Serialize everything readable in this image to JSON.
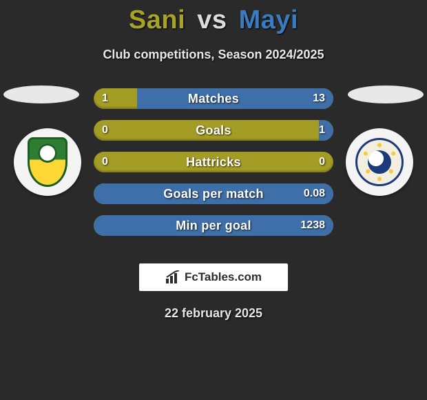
{
  "title": {
    "player1": "Sani",
    "vs": "vs",
    "player2": "Mayi"
  },
  "subtitle": "Club competitions, Season 2024/2025",
  "colors": {
    "player1_bar": "#a49d25",
    "player2_bar": "#3f6fa8",
    "player1_title": "#a8a229",
    "player2_title": "#3b7bbf",
    "background": "#2a2a2a"
  },
  "stats": [
    {
      "label": "Matches",
      "p1": "1",
      "p2": "13",
      "p2_width_pct": 82
    },
    {
      "label": "Goals",
      "p1": "0",
      "p2": "1",
      "p2_width_pct": 6
    },
    {
      "label": "Hattricks",
      "p1": "0",
      "p2": "0",
      "p2_width_pct": 0
    },
    {
      "label": "Goals per match",
      "p1": "",
      "p2": "0.08",
      "p2_width_pct": 100
    },
    {
      "label": "Min per goal",
      "p1": "",
      "p2": "1238",
      "p2_width_pct": 100
    }
  ],
  "brand": "FcTables.com",
  "date": "22 february 2025"
}
